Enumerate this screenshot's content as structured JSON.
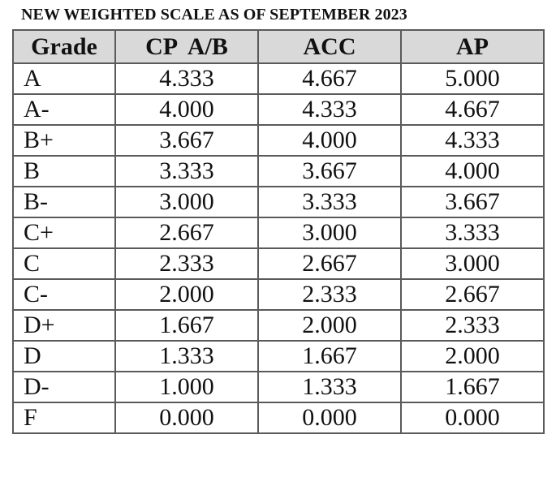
{
  "title": "NEW WEIGHTED SCALE AS OF SEPTEMBER 2023",
  "headers": [
    "Grade",
    "CP  A/B",
    "ACC",
    "AP"
  ],
  "rows": [
    [
      "A",
      "4.333",
      "4.667",
      "5.000"
    ],
    [
      "A-",
      "4.000",
      "4.333",
      "4.667"
    ],
    [
      "B+",
      "3.667",
      "4.000",
      "4.333"
    ],
    [
      "B",
      "3.333",
      "3.667",
      "4.000"
    ],
    [
      "B-",
      "3.000",
      "3.333",
      "3.667"
    ],
    [
      "C+",
      "2.667",
      "3.000",
      "3.333"
    ],
    [
      "C",
      "2.333",
      "2.667",
      "3.000"
    ],
    [
      "C-",
      "2.000",
      "2.333",
      "2.667"
    ],
    [
      "D+",
      "1.667",
      "2.000",
      "2.333"
    ],
    [
      "D",
      "1.333",
      "1.667",
      "2.000"
    ],
    [
      "D-",
      "1.000",
      "1.333",
      "1.667"
    ],
    [
      "F",
      "0.000",
      "0.000",
      "0.000"
    ]
  ],
  "colors": {
    "header_bg": "#d9d9d9",
    "border": "#5a5a5a",
    "text": "#111111"
  }
}
